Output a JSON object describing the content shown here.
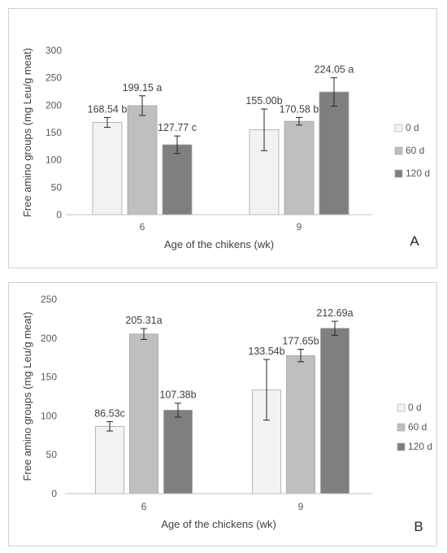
{
  "chart_data": [
    {
      "type": "bar",
      "panel_label": "A",
      "categories": [
        "6",
        "9"
      ],
      "series": [
        {
          "name": "0 d",
          "values": [
            168.54,
            155.0
          ],
          "err": [
            9,
            38
          ],
          "labels": [
            "168.54 b",
            "155.00b"
          ],
          "color": "#f2f2f2"
        },
        {
          "name": "60 d",
          "values": [
            199.15,
            170.58
          ],
          "err": [
            18,
            7
          ],
          "labels": [
            "199.15 a",
            "170.58 b"
          ],
          "color": "#bfbfbf"
        },
        {
          "name": "120 d",
          "values": [
            127.77,
            224.05
          ],
          "err": [
            16,
            26
          ],
          "labels": [
            "127.77 c",
            "224.05 a"
          ],
          "color": "#7f7f7f"
        }
      ],
      "xlabel": "Age of the chikens (wk)",
      "ylabel": "Free amino groups (mg Leu/g meat)",
      "ylim": [
        0,
        300
      ],
      "yticks": [
        0,
        50,
        100,
        150,
        200,
        250,
        300
      ],
      "grid": false,
      "legend": "right"
    },
    {
      "type": "bar",
      "panel_label": "B",
      "categories": [
        "6",
        "9"
      ],
      "series": [
        {
          "name": "0 d",
          "values": [
            86.53,
            133.54
          ],
          "err": [
            6,
            39
          ],
          "labels": [
            "86.53c",
            "133.54b"
          ],
          "color": "#f2f2f2"
        },
        {
          "name": "60 d",
          "values": [
            205.31,
            177.65
          ],
          "err": [
            7,
            8
          ],
          "labels": [
            "205.31a",
            "177.65b"
          ],
          "color": "#bfbfbf"
        },
        {
          "name": "120 d",
          "values": [
            107.38,
            212.69
          ],
          "err": [
            9,
            9
          ],
          "labels": [
            "107.38b",
            "212.69a"
          ],
          "color": "#7f7f7f"
        }
      ],
      "xlabel": "Age of the chickens (wk)",
      "ylabel": "Free amino groups (mg Leu/g meat)",
      "ylim": [
        0,
        250
      ],
      "yticks": [
        0,
        50,
        100,
        150,
        200,
        250
      ],
      "grid": false,
      "legend": "right"
    }
  ]
}
